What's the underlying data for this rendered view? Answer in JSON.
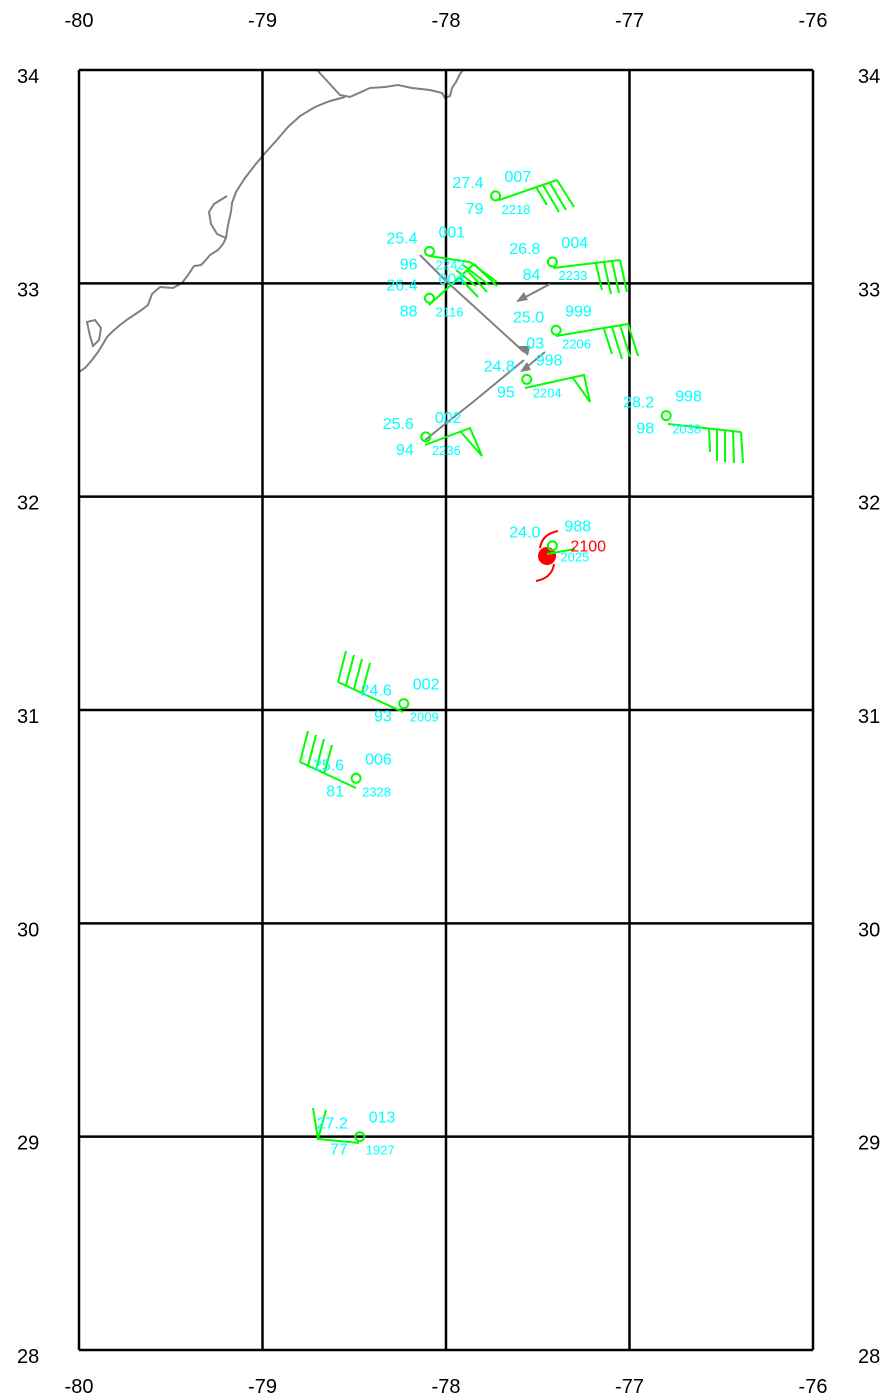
{
  "map": {
    "lon_range": [
      -80,
      -76
    ],
    "lat_range": [
      28,
      34
    ],
    "lon_ticks": [
      "-80",
      "-79",
      "-78",
      "-77",
      "-76"
    ],
    "lat_ticks": [
      "34",
      "33",
      "32",
      "31",
      "30",
      "29",
      "28"
    ],
    "colors": {
      "grid": "#000000",
      "coast": "#808080",
      "barb": "#00ff00",
      "text": "#00ffff",
      "storm": "#ff0000",
      "track": "#808080"
    }
  },
  "observations": [
    {
      "id": "obs1",
      "lon": -77.73,
      "lat": 33.41,
      "temp": "27.4",
      "pres": "007",
      "dew": "79",
      "time": "2218"
    },
    {
      "id": "obs2",
      "lon": -78.09,
      "lat": 33.15,
      "temp": "25.4",
      "pres": "001",
      "dew": "96",
      "time": "2242"
    },
    {
      "id": "obs3",
      "lon": -77.42,
      "lat": 33.1,
      "temp": "26.8",
      "pres": "004",
      "dew": "84",
      "time": "2233"
    },
    {
      "id": "obs4",
      "lon": -78.09,
      "lat": 32.93,
      "temp": "26.4",
      "pres": "004",
      "dew": "88",
      "time": "2116"
    },
    {
      "id": "obs5",
      "lon": -77.4,
      "lat": 32.78,
      "temp": "25.0",
      "pres": "999",
      "dew": "03",
      "time": "2206"
    },
    {
      "id": "obs6",
      "lon": -77.56,
      "lat": 32.55,
      "temp": "24.8",
      "pres": "998",
      "dew": "95",
      "time": "2204"
    },
    {
      "id": "obs7",
      "lon": -76.8,
      "lat": 32.38,
      "temp": "28.2",
      "pres": "998",
      "dew": "98",
      "time": "2038"
    },
    {
      "id": "obs8",
      "lon": -78.11,
      "lat": 32.28,
      "temp": "25.6",
      "pres": "002",
      "dew": "94",
      "time": "2236"
    },
    {
      "id": "obs9",
      "lon": -78.23,
      "lat": 31.03,
      "temp": "24.6",
      "pres": "002",
      "dew": "93",
      "time": "2009"
    },
    {
      "id": "obs10",
      "lon": -78.49,
      "lat": 30.68,
      "temp": "25.6",
      "pres": "006",
      "dew": "81",
      "time": "2328"
    },
    {
      "id": "obs11",
      "lon": -78.47,
      "lat": 29.0,
      "temp": "27.2",
      "pres": "013",
      "dew": "77",
      "time": "1927"
    }
  ],
  "storm": {
    "lon": -77.42,
    "lat": 31.77,
    "temp": "24.0",
    "pres": "988",
    "label": "2100",
    "time": "2025"
  }
}
